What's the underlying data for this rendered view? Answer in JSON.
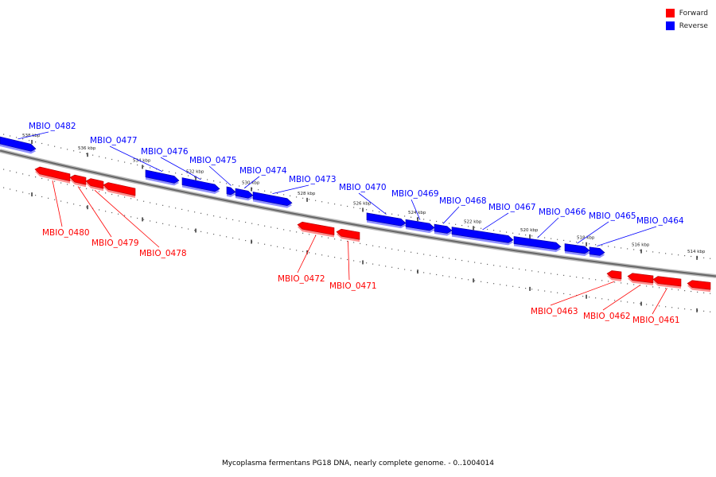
{
  "legend": [
    {
      "label": "Forward",
      "color": "#ff0000"
    },
    {
      "label": "Reverse",
      "color": "#0000ff"
    }
  ],
  "caption": "Mycoplasma fermentans PG18 DNA, nearly complete genome. - 0..1004014",
  "ticks": [
    "538 kbp",
    "536 kbp",
    "534 kbp",
    "532 kbp",
    "530 kbp",
    "528 kbp",
    "526 kbp",
    "524 kbp",
    "522 kbp",
    "520 kbp",
    "518 kbp",
    "516 kbp",
    "514 kbp"
  ],
  "genes": [
    {
      "name": "MBIO_0482",
      "strand": "reverse"
    },
    {
      "name": "MBIO_0480",
      "strand": "forward"
    },
    {
      "name": "MBIO_0479",
      "strand": "forward"
    },
    {
      "name": "MBIO_0478",
      "strand": "forward"
    },
    {
      "name": "MBIO_0477",
      "strand": "reverse"
    },
    {
      "name": "MBIO_0476",
      "strand": "reverse"
    },
    {
      "name": "MBIO_0475",
      "strand": "reverse"
    },
    {
      "name": "MBIO_0474",
      "strand": "reverse"
    },
    {
      "name": "MBIO_0473",
      "strand": "reverse"
    },
    {
      "name": "MBIO_0472",
      "strand": "forward"
    },
    {
      "name": "MBIO_0471",
      "strand": "forward"
    },
    {
      "name": "MBIO_0470",
      "strand": "reverse"
    },
    {
      "name": "MBIO_0469",
      "strand": "reverse"
    },
    {
      "name": "MBIO_0468",
      "strand": "reverse"
    },
    {
      "name": "MBIO_0467",
      "strand": "reverse"
    },
    {
      "name": "MBIO_0466",
      "strand": "reverse"
    },
    {
      "name": "MBIO_0465",
      "strand": "reverse"
    },
    {
      "name": "MBIO_0464",
      "strand": "reverse"
    },
    {
      "name": "MBIO_0463",
      "strand": "forward"
    },
    {
      "name": "MBIO_0462",
      "strand": "forward"
    },
    {
      "name": "MBIO_0461",
      "strand": "forward"
    }
  ]
}
